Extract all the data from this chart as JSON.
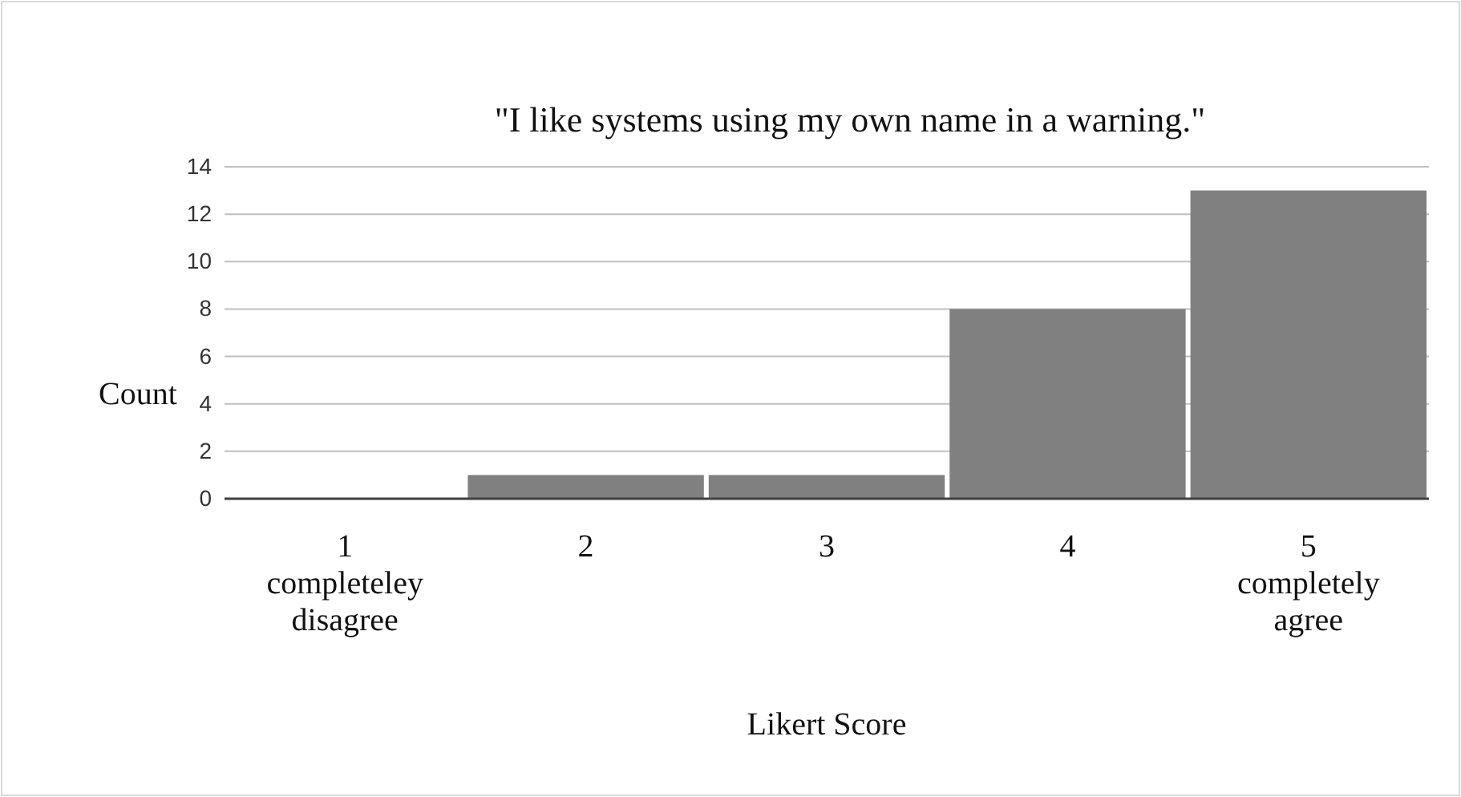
{
  "chart_data": {
    "type": "bar",
    "title": "\"I like systems using my own name in a warning.\"",
    "xlabel": "Likert Score",
    "ylabel": "Count",
    "categories": [
      "1\ncompleteley\ndisagree",
      "2",
      "3",
      "4",
      "5\ncompletely\nagree"
    ],
    "values": [
      0,
      1,
      1,
      8,
      13
    ],
    "color": "#808080",
    "ylim": [
      0,
      14
    ],
    "yticks": [
      0,
      2,
      4,
      6,
      8,
      10,
      12,
      14
    ],
    "grid": "y"
  }
}
